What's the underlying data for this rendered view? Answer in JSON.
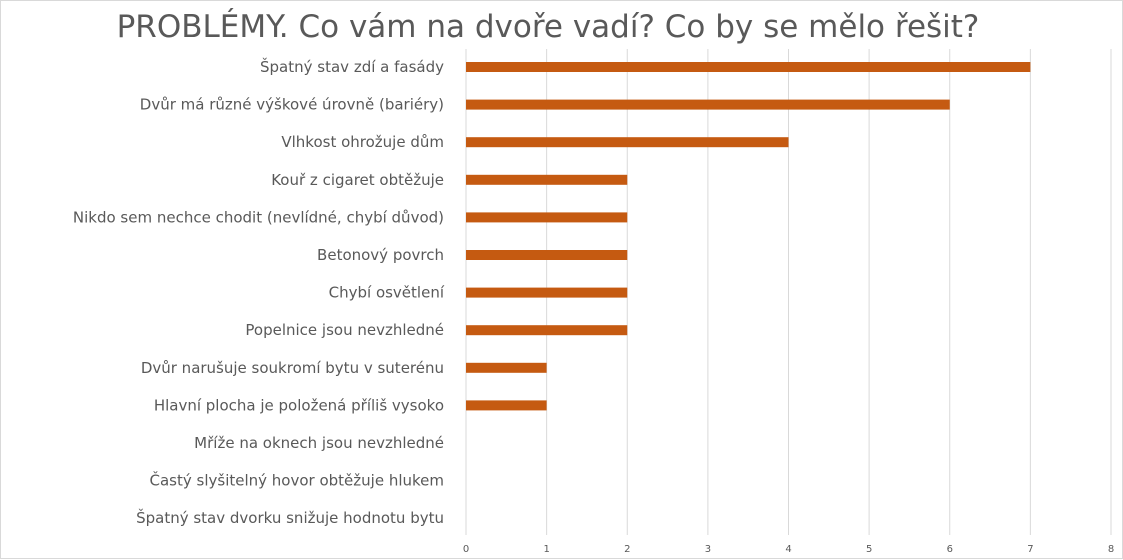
{
  "chart_data": {
    "type": "bar",
    "orientation": "horizontal",
    "title": "PROBLÉMY. Co vám na dvoře vadí? Co by se mělo řešit?",
    "xlabel": "",
    "ylabel": "",
    "xlim": [
      0,
      8
    ],
    "x_ticks": [
      "0",
      "1",
      "2",
      "3",
      "4",
      "5",
      "6",
      "7",
      "8"
    ],
    "grid": "vertical",
    "legend": "none",
    "bar_color": "#c55a11",
    "categories": [
      "Špatný stav zdí a fasády",
      "Dvůr má různé výškové úrovně (bariéry)",
      "Vlhkost ohrožuje dům",
      "Kouř z cigaret obtěžuje",
      "Nikdo sem nechce chodit (nevlídné, chybí důvod)",
      "Betonový povrch",
      "Chybí osvětlení",
      "Popelnice jsou nevzhledné",
      "Dvůr narušuje soukromí bytu v suterénu",
      "Hlavní plocha je položená příliš vysoko",
      "Mříže na oknech jsou nevzhledné",
      "Častý slyšitelný hovor obtěžuje hlukem",
      "Špatný stav dvorku snižuje hodnotu bytu"
    ],
    "values": [
      7,
      6,
      4,
      2,
      2,
      2,
      2,
      2,
      1,
      1,
      0,
      0,
      0
    ]
  }
}
